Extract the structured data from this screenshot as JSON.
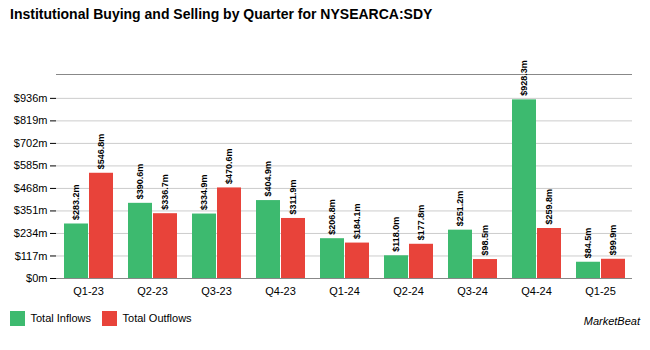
{
  "chart_data": {
    "type": "bar",
    "title": "Institutional Buying and Selling by Quarter for NYSEARCA:SDY",
    "categories": [
      "Q1-23",
      "Q2-23",
      "Q3-23",
      "Q4-23",
      "Q1-24",
      "Q2-24",
      "Q3-24",
      "Q4-24",
      "Q1-25"
    ],
    "series": [
      {
        "name": "Total Inflows",
        "color": "#3dba6f",
        "values": [
          283.2,
          390.6,
          334.9,
          404.9,
          206.8,
          118.0,
          251.2,
          928.3,
          84.5
        ],
        "value_labels": [
          "$283.2m",
          "$390.6m",
          "$334.9m",
          "$404.9m",
          "$206.8m",
          "$118.0m",
          "$251.2m",
          "$928.3m",
          "$84.5m"
        ]
      },
      {
        "name": "Total Outflows",
        "color": "#e8433a",
        "values": [
          546.8,
          336.7,
          470.6,
          311.9,
          184.1,
          177.8,
          98.5,
          259.8,
          99.9
        ],
        "value_labels": [
          "$546.8m",
          "$336.7m",
          "$470.6m",
          "$311.9m",
          "$184.1m",
          "$177.8m",
          "$98.5m",
          "$259.8m",
          "$99.9m"
        ]
      }
    ],
    "ylim": [
      0,
      1060
    ],
    "yticks": [
      {
        "value": 0,
        "label": "$0m"
      },
      {
        "value": 117,
        "label": "$117m"
      },
      {
        "value": 234,
        "label": "$234m"
      },
      {
        "value": 351,
        "label": "$351m"
      },
      {
        "value": 468,
        "label": "$468m"
      },
      {
        "value": 585,
        "label": "$585m"
      },
      {
        "value": 702,
        "label": "$702m"
      },
      {
        "value": 819,
        "label": "$819m"
      },
      {
        "value": 936,
        "label": "$936m"
      }
    ],
    "grid": true,
    "data_labels": true,
    "legend": "lower left",
    "annotations": [
      "MarketBeat"
    ]
  }
}
